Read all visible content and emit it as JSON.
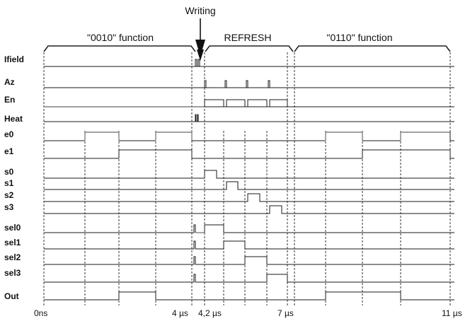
{
  "annotation": {
    "writing": "Writing"
  },
  "phases": [
    {
      "label": "\"0010\" function"
    },
    {
      "label": "REFRESH"
    },
    {
      "label": "\"0110\" function"
    }
  ],
  "signals": [
    {
      "label": "Ifield",
      "color": "#1a1a1a"
    },
    {
      "label": "Az",
      "color": "#1a1a1a"
    },
    {
      "label": "En",
      "color": "#1a1a1a"
    },
    {
      "label": "Heat",
      "color": "#1a1a1a"
    },
    {
      "label": "e0",
      "color": "#1a1a1a"
    },
    {
      "label": "e1",
      "color": "#1a1a1a"
    },
    {
      "label": "s0",
      "color": "#1a1a1a"
    },
    {
      "label": "s1",
      "color": "#1a1a1a"
    },
    {
      "label": "s2",
      "color": "#1a1a1a"
    },
    {
      "label": "s3",
      "color": "#1a1a1a"
    },
    {
      "label": "sel0",
      "color": "#1a1a1a"
    },
    {
      "label": "sel1",
      "color": "#1a1a1a"
    },
    {
      "label": "sel2",
      "color": "#1a1a1a"
    },
    {
      "label": "sel3",
      "color": "#1a1a1a"
    },
    {
      "label": "Out",
      "color": "#1a1a1a"
    }
  ],
  "time_axis": {
    "ticks": [
      "0ns",
      "4 µs",
      "4,2 µs",
      "7 µs",
      "11 µs"
    ]
  }
}
